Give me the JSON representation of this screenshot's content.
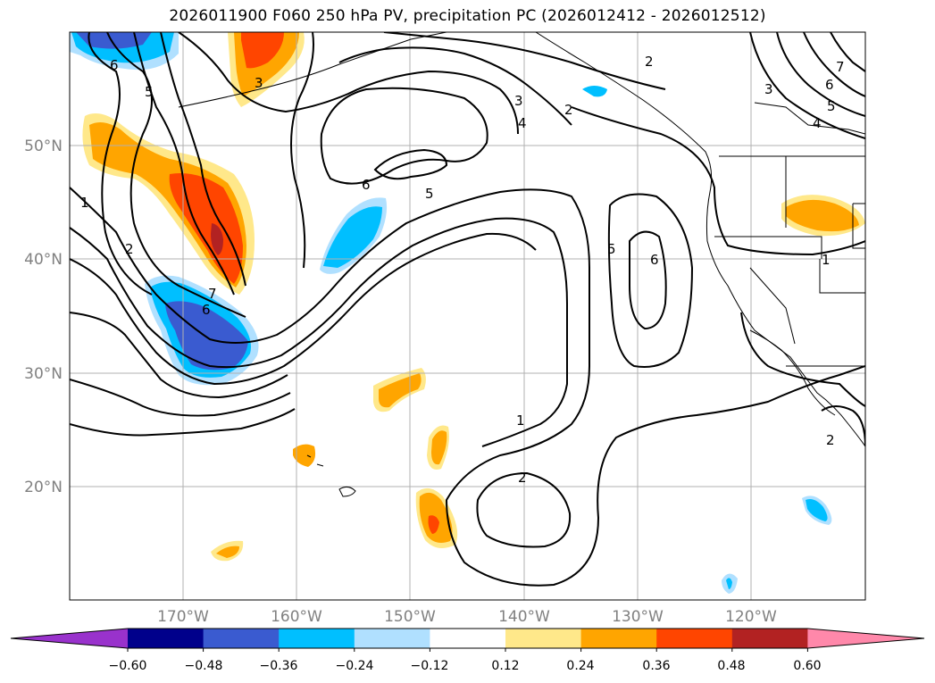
{
  "title": "2026011900 F060 250 hPa PV, precipitation PC (2026012412 - 2026012512)",
  "map": {
    "lon_range": [
      -180,
      -110
    ],
    "lat_range": [
      10,
      60
    ],
    "lat_labels": [
      {
        "lat": 50,
        "text": "50°N"
      },
      {
        "lat": 40,
        "text": "40°N"
      },
      {
        "lat": 30,
        "text": "30°N"
      },
      {
        "lat": 20,
        "text": "20°N"
      }
    ],
    "lon_labels": [
      {
        "lon": -170,
        "text": "170°W"
      },
      {
        "lon": -160,
        "text": "160°W"
      },
      {
        "lon": -150,
        "text": "150°W"
      },
      {
        "lon": -140,
        "text": "140°W"
      },
      {
        "lon": -130,
        "text": "130°W"
      },
      {
        "lon": -120,
        "text": "120°W"
      }
    ],
    "contour_labels": [
      "6",
      "5",
      "3",
      "2",
      "2",
      "3",
      "4",
      "7",
      "6",
      "5",
      "4",
      "3",
      "1",
      "2",
      "7",
      "6",
      "6",
      "5",
      "5",
      "6",
      "1",
      "1",
      "2",
      "2"
    ]
  },
  "colorbar": {
    "ticks": [
      "−0.60",
      "−0.48",
      "−0.36",
      "−0.24",
      "−0.12",
      "0.12",
      "0.24",
      "0.36",
      "0.48",
      "0.60"
    ],
    "colors": [
      "#9932cc",
      "#00008b",
      "#3a5bd0",
      "#00bfff",
      "#b0e0ff",
      "#ffffff",
      "#ffe88a",
      "#ffa500",
      "#ff4500",
      "#b22222",
      "#ff88aa"
    ]
  }
}
